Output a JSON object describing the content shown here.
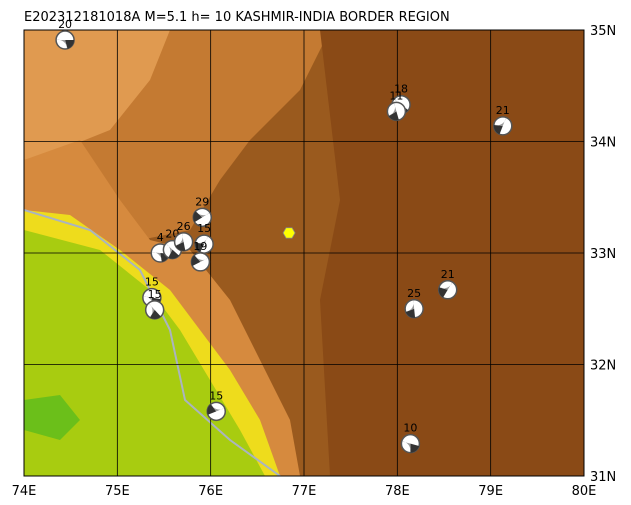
{
  "title": "E202312181018A M=5.1 h= 10 KASHMIR-INDIA BORDER REGION",
  "xlim": [
    74,
    80
  ],
  "ylim": [
    31,
    35
  ],
  "xticks": [
    {
      "value": 74,
      "label": "74E"
    },
    {
      "value": 75,
      "label": "75E"
    },
    {
      "value": 76,
      "label": "76E"
    },
    {
      "value": 77,
      "label": "77E"
    },
    {
      "value": 78,
      "label": "78E"
    },
    {
      "value": 79,
      "label": "79E"
    },
    {
      "value": 80,
      "label": "80E"
    }
  ],
  "yticks": [
    {
      "value": 31,
      "label": "31N"
    },
    {
      "value": 32,
      "label": "32N"
    },
    {
      "value": 33,
      "label": "33N"
    },
    {
      "value": 34,
      "label": "34N"
    },
    {
      "value": 35,
      "label": "35N"
    }
  ],
  "epicenter": {
    "lon": 76.84,
    "lat": 33.18
  },
  "events": [
    {
      "depth": 20,
      "lon": 74.44,
      "lat": 34.91
    },
    {
      "depth": 18,
      "lon": 78.04,
      "lat": 34.33
    },
    {
      "depth": 11,
      "lon": 77.99,
      "lat": 34.27
    },
    {
      "depth": 21,
      "lon": 79.13,
      "lat": 34.14
    },
    {
      "depth": 29,
      "lon": 75.91,
      "lat": 33.32
    },
    {
      "depth": 4,
      "lon": 75.46,
      "lat": 33.0
    },
    {
      "depth": 20,
      "lon": 75.59,
      "lat": 33.03
    },
    {
      "depth": 26,
      "lon": 75.71,
      "lat": 33.1
    },
    {
      "depth": 15,
      "lon": 75.93,
      "lat": 33.08
    },
    {
      "depth": 19,
      "lon": 75.89,
      "lat": 32.92
    },
    {
      "depth": 15,
      "lon": 75.37,
      "lat": 32.6
    },
    {
      "depth": 15,
      "lon": 75.4,
      "lat": 32.49
    },
    {
      "depth": 25,
      "lon": 78.18,
      "lat": 32.5
    },
    {
      "depth": 21,
      "lon": 78.54,
      "lat": 32.67
    },
    {
      "depth": 15,
      "lon": 76.06,
      "lat": 31.58
    },
    {
      "depth": 10,
      "lon": 78.14,
      "lat": 31.29
    }
  ]
}
